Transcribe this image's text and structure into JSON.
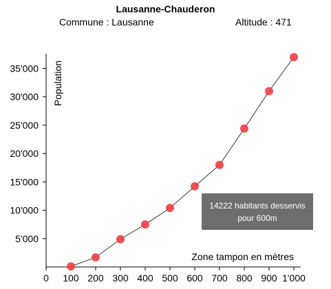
{
  "header": {
    "title": "Lausanne-Chauderon",
    "commune": "Commune : Lausanne",
    "altitude": "Altitude : 471"
  },
  "tooltip": {
    "line1": "14222 habitants desservis",
    "line2": "pour 600m"
  },
  "chart_data": {
    "type": "line",
    "x": [
      100,
      200,
      300,
      400,
      500,
      600,
      700,
      800,
      900,
      1000
    ],
    "series": [
      {
        "values": [
          100,
          1700,
          4900,
          7500,
          10400,
          14222,
          18000,
          24400,
          31000,
          37000
        ]
      }
    ],
    "xticks": [
      0,
      100,
      200,
      300,
      400,
      500,
      600,
      700,
      800,
      900,
      1000
    ],
    "xtick_labels": [
      "0",
      "100",
      "200",
      "300",
      "400",
      "500",
      "600",
      "700",
      "800",
      "900",
      "1'000"
    ],
    "yticks": [
      5000,
      10000,
      15000,
      20000,
      25000,
      30000,
      35000
    ],
    "ytick_labels": [
      "5'000",
      "10'000",
      "15'000",
      "20'000",
      "25'000",
      "30'000",
      "35'000"
    ],
    "xlabel": "Zone tampon en mètres",
    "ylabel": "Population",
    "xlim": [
      0,
      1000
    ],
    "ylim": [
      0,
      37000
    ],
    "grid": false,
    "colors": {
      "line": "#333333",
      "marker": "#f04040"
    }
  }
}
